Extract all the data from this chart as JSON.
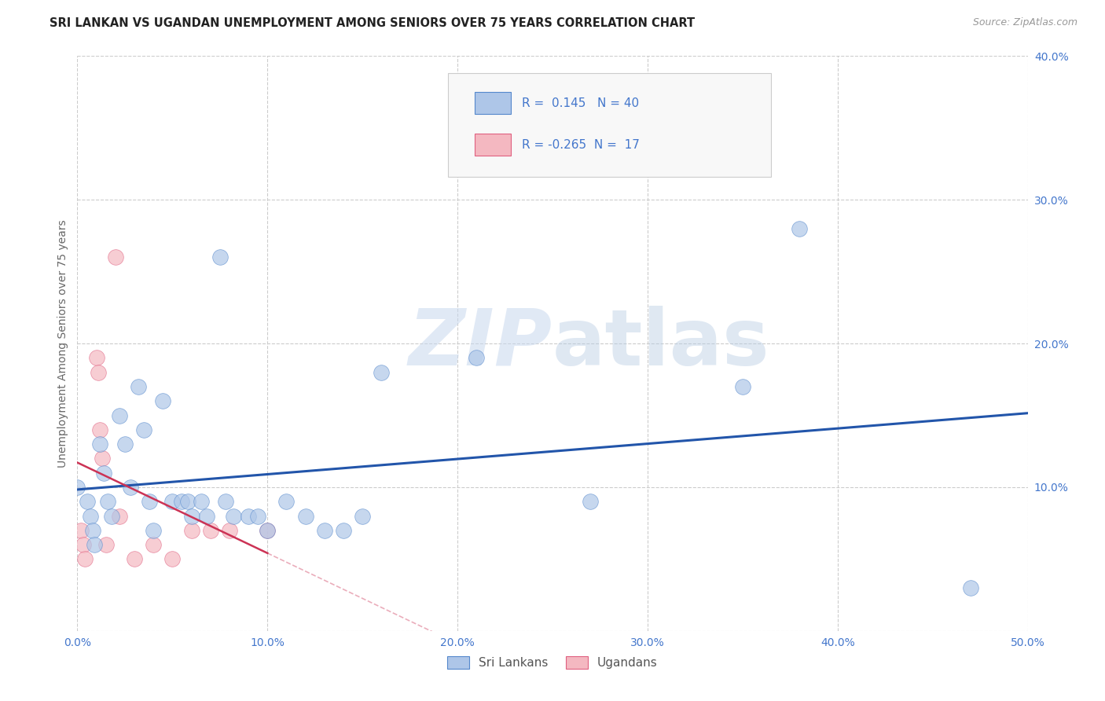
{
  "title": "SRI LANKAN VS UGANDAN UNEMPLOYMENT AMONG SENIORS OVER 75 YEARS CORRELATION CHART",
  "source": "Source: ZipAtlas.com",
  "ylabel": "Unemployment Among Seniors over 75 years",
  "xlim": [
    0,
    0.5
  ],
  "ylim": [
    0,
    0.4
  ],
  "xticks": [
    0.0,
    0.1,
    0.2,
    0.3,
    0.4,
    0.5
  ],
  "yticks": [
    0.0,
    0.1,
    0.2,
    0.3,
    0.4
  ],
  "xticklabels": [
    "0.0%",
    "10.0%",
    "20.0%",
    "30.0%",
    "40.0%",
    "50.0%"
  ],
  "yticklabels": [
    "",
    "10.0%",
    "20.0%",
    "30.0%",
    "40.0%"
  ],
  "sri_lanka_x": [
    0.0,
    0.005,
    0.007,
    0.008,
    0.009,
    0.012,
    0.014,
    0.016,
    0.018,
    0.022,
    0.025,
    0.028,
    0.032,
    0.035,
    0.038,
    0.04,
    0.045,
    0.05,
    0.055,
    0.058,
    0.06,
    0.065,
    0.068,
    0.075,
    0.078,
    0.082,
    0.09,
    0.095,
    0.1,
    0.11,
    0.12,
    0.13,
    0.14,
    0.15,
    0.16,
    0.21,
    0.27,
    0.35,
    0.38,
    0.47
  ],
  "sri_lanka_y": [
    0.1,
    0.09,
    0.08,
    0.07,
    0.06,
    0.13,
    0.11,
    0.09,
    0.08,
    0.15,
    0.13,
    0.1,
    0.17,
    0.14,
    0.09,
    0.07,
    0.16,
    0.09,
    0.09,
    0.09,
    0.08,
    0.09,
    0.08,
    0.26,
    0.09,
    0.08,
    0.08,
    0.08,
    0.07,
    0.09,
    0.08,
    0.07,
    0.07,
    0.08,
    0.18,
    0.19,
    0.09,
    0.17,
    0.28,
    0.03
  ],
  "ugandan_x": [
    0.002,
    0.003,
    0.004,
    0.01,
    0.011,
    0.012,
    0.013,
    0.015,
    0.02,
    0.022,
    0.03,
    0.04,
    0.05,
    0.06,
    0.07,
    0.08,
    0.1
  ],
  "ugandan_y": [
    0.07,
    0.06,
    0.05,
    0.19,
    0.18,
    0.14,
    0.12,
    0.06,
    0.26,
    0.08,
    0.05,
    0.06,
    0.05,
    0.07,
    0.07,
    0.07,
    0.07
  ],
  "sri_lanka_color": "#aec6e8",
  "ugandan_color": "#f4b8c1",
  "sri_lanka_edge_color": "#5588cc",
  "ugandan_edge_color": "#e06080",
  "sri_lanka_line_color": "#2255aa",
  "ugandan_line_color": "#cc3355",
  "sri_lanka_R": 0.145,
  "sri_lanka_N": 40,
  "ugandan_R": -0.265,
  "ugandan_N": 17,
  "legend_labels": [
    "Sri Lankans",
    "Ugandans"
  ],
  "watermark_zip": "ZIP",
  "watermark_atlas": "atlas",
  "background_color": "#ffffff",
  "grid_color": "#cccccc",
  "title_fontsize": 10.5,
  "axis_tick_color": "#4477cc",
  "axis_tick_fontsize": 10,
  "ylabel_fontsize": 10,
  "scatter_size": 200,
  "scatter_alpha": 0.7,
  "scatter_linewidth": 0.5
}
